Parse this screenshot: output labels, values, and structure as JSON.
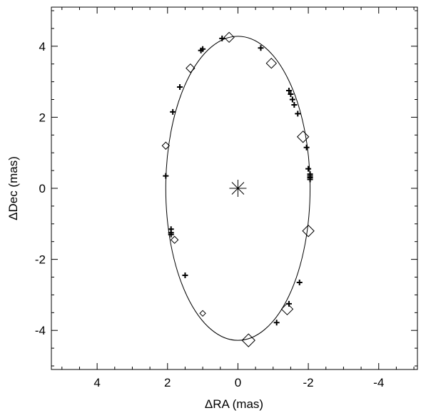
{
  "chart_data": {
    "type": "scatter",
    "xlabel": "ΔRA (mas)",
    "ylabel": "ΔDec (mas)",
    "xlim": [
      5.3,
      -5.1
    ],
    "ylim": [
      -5.1,
      5.1
    ],
    "x_ticks": [
      4,
      2,
      0,
      -2,
      -4
    ],
    "x_tick_labels": [
      "4",
      "2",
      "0",
      "-2",
      "-4"
    ],
    "y_ticks": [
      -4,
      -2,
      0,
      2,
      4
    ],
    "y_tick_labels": [
      "-4",
      "-2",
      "0",
      "2",
      "4"
    ],
    "grid": false,
    "center_marker": {
      "x": 0,
      "y": 0,
      "symbol": "asterisk"
    },
    "orbit_ellipse": {
      "center_x": 0,
      "center_y": 0,
      "semi_axis_x": 2.05,
      "semi_axis_y": 4.28
    },
    "diamond_points": [
      {
        "x": 0.25,
        "y": 4.25
      },
      {
        "x": -0.95,
        "y": 3.52
      },
      {
        "x": 1.35,
        "y": 3.38
      },
      {
        "x": -1.85,
        "y": 1.45
      },
      {
        "x": 2.05,
        "y": 1.2
      },
      {
        "x": -2.0,
        "y": -1.2
      },
      {
        "x": 1.8,
        "y": -1.45
      },
      {
        "x": -1.4,
        "y": -3.4
      },
      {
        "x": 1.0,
        "y": -3.52
      },
      {
        "x": -0.3,
        "y": -4.28
      }
    ],
    "plus_points": [
      {
        "x": 0.45,
        "y": 4.22
      },
      {
        "x": -0.65,
        "y": 3.95
      },
      {
        "x": 1.0,
        "y": 3.92
      },
      {
        "x": 1.05,
        "y": 3.88
      },
      {
        "x": 1.65,
        "y": 2.85
      },
      {
        "x": -1.45,
        "y": 2.75
      },
      {
        "x": -1.5,
        "y": 2.65
      },
      {
        "x": -1.55,
        "y": 2.5
      },
      {
        "x": -1.6,
        "y": 2.35
      },
      {
        "x": -1.7,
        "y": 2.1
      },
      {
        "x": 1.85,
        "y": 2.15
      },
      {
        "x": -1.95,
        "y": 1.15
      },
      {
        "x": 2.05,
        "y": 0.35
      },
      {
        "x": -2.0,
        "y": 0.55
      },
      {
        "x": -2.05,
        "y": 0.4
      },
      {
        "x": -2.05,
        "y": 0.35
      },
      {
        "x": -2.05,
        "y": 0.3
      },
      {
        "x": -2.05,
        "y": 0.25
      },
      {
        "x": 1.9,
        "y": -1.15
      },
      {
        "x": 1.9,
        "y": -1.25
      },
      {
        "x": 1.9,
        "y": -1.3
      },
      {
        "x": 1.5,
        "y": -2.45
      },
      {
        "x": -1.75,
        "y": -2.65
      },
      {
        "x": -1.45,
        "y": -3.25
      },
      {
        "x": -1.1,
        "y": -3.78
      }
    ]
  }
}
